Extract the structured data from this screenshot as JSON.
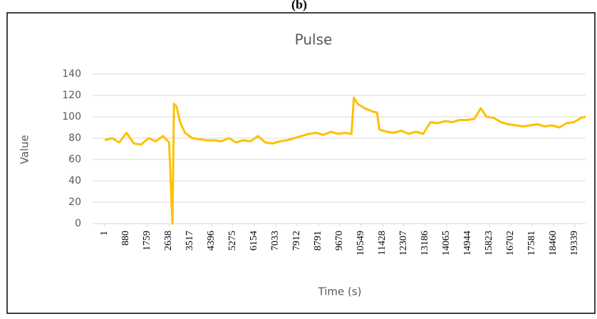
{
  "chart_data": {
    "type": "line",
    "panel_label": "(b)",
    "title": "Pulse",
    "xlabel": "Time (s)",
    "ylabel": "Value",
    "color": "#ffc000",
    "grid": true,
    "x": [
      1,
      300,
      600,
      900,
      1200,
      1500,
      1800,
      2100,
      2400,
      2650,
      2785,
      2850,
      2950,
      3100,
      3300,
      3600,
      3900,
      4200,
      4500,
      4800,
      5100,
      5400,
      5700,
      6000,
      6300,
      6600,
      6900,
      7200,
      7500,
      7800,
      8100,
      8400,
      8700,
      9000,
      9300,
      9600,
      9900,
      10150,
      10250,
      10400,
      10700,
      11000,
      11200,
      11300,
      11600,
      11900,
      12200,
      12500,
      12800,
      13100,
      13400,
      13700,
      14000,
      14300,
      14600,
      14900,
      15200,
      15470,
      15700,
      16000,
      16300,
      16600,
      16900,
      17200,
      17500,
      17800,
      18100,
      18400,
      18700,
      19000,
      19300,
      19600,
      19780
    ],
    "values": [
      78,
      80,
      76,
      85,
      75,
      74,
      80,
      77,
      82,
      76,
      0,
      112,
      110,
      95,
      85,
      80,
      79,
      78,
      78,
      77,
      80,
      76,
      78,
      77,
      82,
      76,
      75,
      77,
      78,
      80,
      82,
      84,
      85,
      83,
      86,
      84,
      85,
      84,
      118,
      112,
      108,
      105,
      104,
      88,
      86,
      85,
      87,
      84,
      86,
      84,
      95,
      94,
      96,
      95,
      97,
      97,
      98,
      108,
      100,
      99,
      95,
      93,
      92,
      91,
      92,
      93,
      91,
      92,
      90,
      94,
      95,
      99,
      100
    ],
    "xlim": [
      1,
      19780
    ],
    "xticks": [
      1,
      880,
      1759,
      2638,
      3517,
      4396,
      5275,
      6154,
      7033,
      7912,
      8791,
      9670,
      10549,
      11428,
      12307,
      13186,
      14065,
      14944,
      15823,
      16702,
      17581,
      18460,
      19339
    ],
    "ylim": [
      0,
      140
    ],
    "yticks": [
      0,
      20,
      40,
      60,
      80,
      100,
      120,
      140
    ]
  }
}
